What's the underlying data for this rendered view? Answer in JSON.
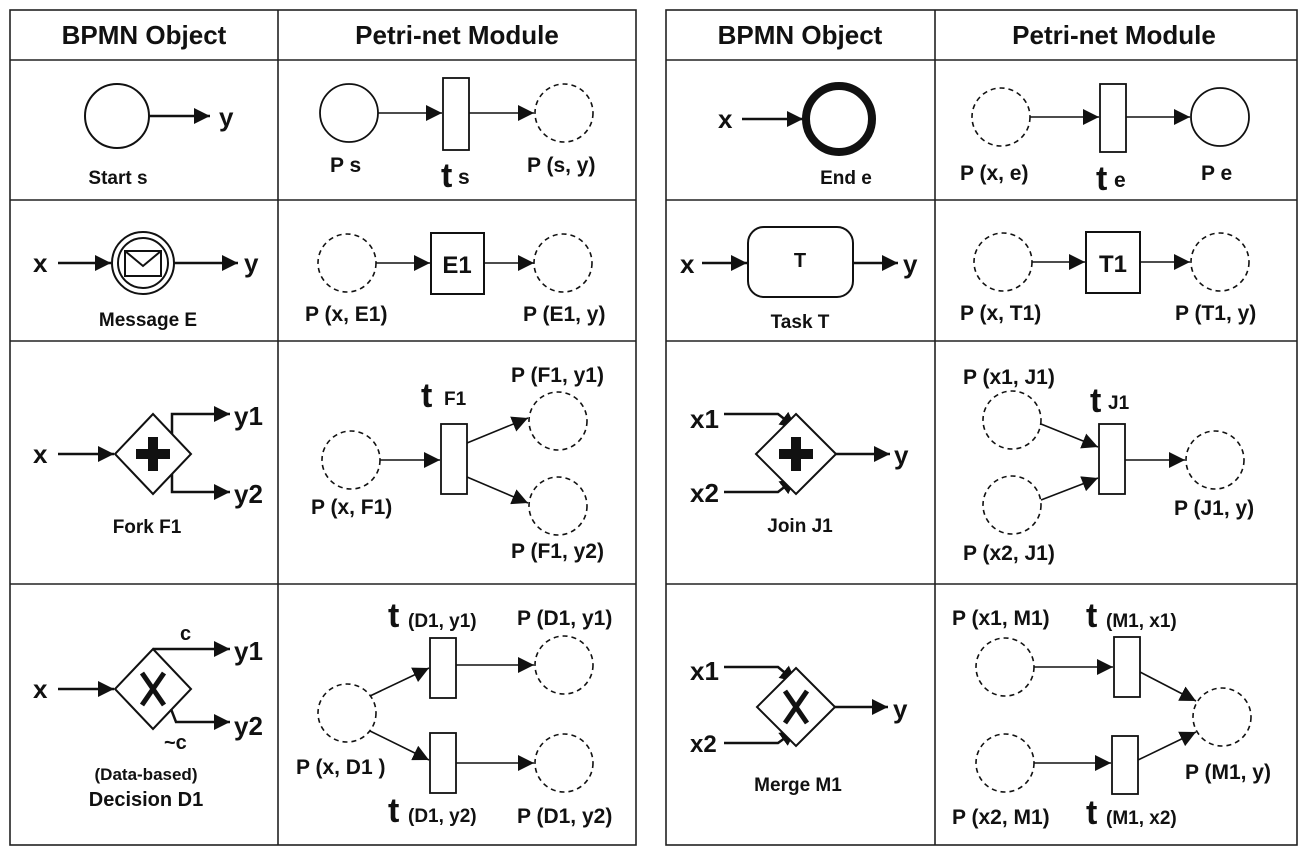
{
  "tables": [
    {
      "headers": [
        "BPMN Object",
        "Petri-net Module"
      ],
      "rows": [
        {
          "bpmn": {
            "x": "",
            "y": "y",
            "caption": "Start  s"
          },
          "petri": {
            "p1": "P s",
            "t_main": "t",
            "t_sub": "s",
            "p2": "P (s, y)"
          }
        },
        {
          "bpmn": {
            "x": "x",
            "y": "y",
            "caption": "Message  E"
          },
          "petri": {
            "p1": "P (x, E1)",
            "t_box": "E1",
            "p2": "P (E1, y)"
          }
        },
        {
          "bpmn": {
            "x": "x",
            "y1": "y1",
            "y2": "y2",
            "caption": "Fork  F1"
          },
          "petri": {
            "p_in": "P (x, F1)",
            "t_main": "t",
            "t_sub": "F1",
            "p_out1": "P (F1, y1)",
            "p_out2": "P (F1, y2)"
          }
        },
        {
          "bpmn": {
            "x": "x",
            "y1": "y1",
            "y2": "y2",
            "c": "c",
            "not_c": "~c",
            "caption1": "(Data-based)",
            "caption2": "Decision  D1"
          },
          "petri": {
            "p_in": "P (x, D1 )",
            "t1_main": "t",
            "t1_sub": "(D1, y1)",
            "t2_main": "t",
            "t2_sub": "(D1, y2)",
            "p_out1": "P (D1, y1)",
            "p_out2": "P (D1, y2)"
          }
        }
      ]
    },
    {
      "headers": [
        "BPMN Object",
        "Petri-net Module"
      ],
      "rows": [
        {
          "bpmn": {
            "x": "x",
            "caption": "End  e"
          },
          "petri": {
            "p1": "P (x, e)",
            "t_main": "t",
            "t_sub": "e",
            "p2": "P e"
          }
        },
        {
          "bpmn": {
            "x": "x",
            "y": "y",
            "task": "T",
            "caption": "Task  T"
          },
          "petri": {
            "p1": "P (x, T1)",
            "t_box": "T1",
            "p2": "P (T1, y)"
          }
        },
        {
          "bpmn": {
            "x1": "x1",
            "x2": "x2",
            "y": "y",
            "caption": "Join  J1"
          },
          "petri": {
            "p_in1": "P (x1, J1)",
            "p_in2": "P (x2, J1)",
            "t_main": "t",
            "t_sub": "J1",
            "p_out": "P (J1, y)"
          }
        },
        {
          "bpmn": {
            "x1": "x1",
            "x2": "x2",
            "y": "y",
            "caption": "Merge  M1"
          },
          "petri": {
            "p_in1": "P (x1, M1)",
            "p_in2": "P (x2, M1)",
            "t1_main": "t",
            "t1_sub": "(M1, x1)",
            "t2_main": "t",
            "t2_sub": "(M1, x2)",
            "p_out": "P (M1, y)"
          }
        }
      ]
    }
  ]
}
